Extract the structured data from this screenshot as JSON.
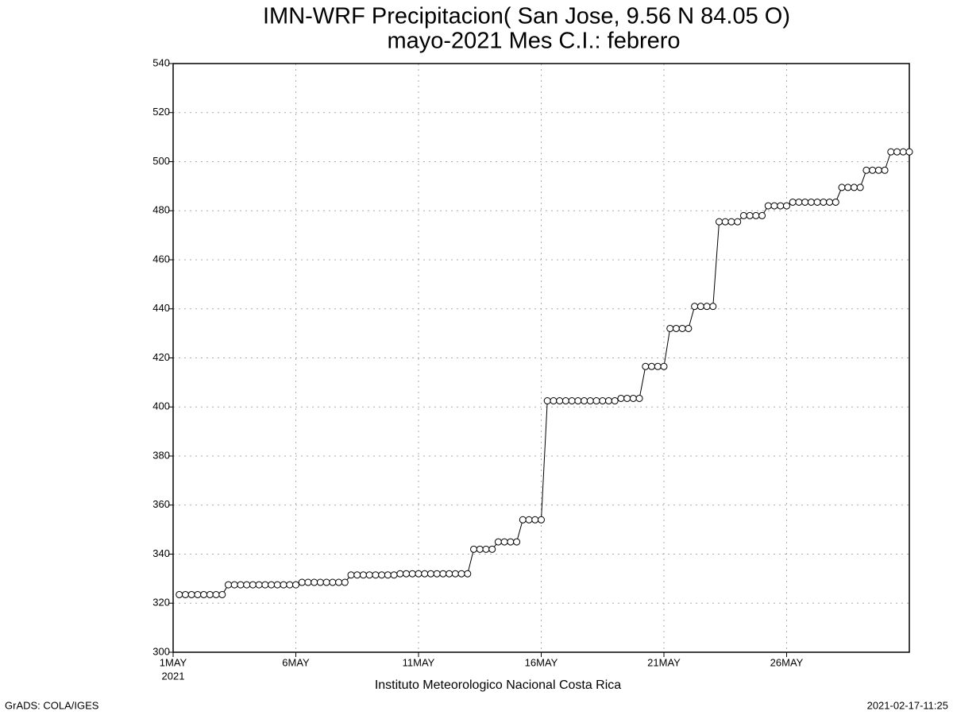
{
  "chart_data": {
    "type": "line",
    "title": "IMN-WRF  Precipitacion( San Jose, 9.56  N 84.05  O)",
    "subtitle": "mayo-2021 Mes C.I.: febrero",
    "x_label": "Instituto Meteorologico Nacional Costa Rica",
    "x_year_label": "2021",
    "footer_left": "GrADS: COLA/IGES",
    "footer_right": "2021-02-17-11:25",
    "xlim": [
      1,
      31
    ],
    "xticks": [
      {
        "value": 1,
        "label": "1MAY"
      },
      {
        "value": 6,
        "label": "6MAY"
      },
      {
        "value": 11,
        "label": "11MAY"
      },
      {
        "value": 16,
        "label": "16MAY"
      },
      {
        "value": 21,
        "label": "21MAY"
      },
      {
        "value": 26,
        "label": "26MAY"
      }
    ],
    "ylim": [
      300,
      540
    ],
    "yticks": [
      300,
      320,
      340,
      360,
      380,
      400,
      420,
      440,
      460,
      480,
      500,
      520,
      540
    ],
    "grid": true,
    "x": [
      1.25,
      1.5,
      1.75,
      2,
      2.25,
      2.5,
      2.75,
      3,
      3.25,
      3.5,
      3.75,
      4,
      4.25,
      4.5,
      4.75,
      5,
      5.25,
      5.5,
      5.75,
      6,
      6.25,
      6.5,
      6.75,
      7,
      7.25,
      7.5,
      7.75,
      8,
      8.25,
      8.5,
      8.75,
      9,
      9.25,
      9.5,
      9.75,
      10,
      10.25,
      10.5,
      10.75,
      11,
      11.25,
      11.5,
      11.75,
      12,
      12.25,
      12.5,
      12.75,
      13,
      13.25,
      13.5,
      13.75,
      14,
      14.25,
      14.5,
      14.75,
      15,
      15.25,
      15.5,
      15.75,
      16,
      16.25,
      16.5,
      16.75,
      17,
      17.25,
      17.5,
      17.75,
      18,
      18.25,
      18.5,
      18.75,
      19,
      19.25,
      19.5,
      19.75,
      20,
      20.25,
      20.5,
      20.75,
      21,
      21.25,
      21.5,
      21.75,
      22,
      22.25,
      22.5,
      22.75,
      23,
      23.25,
      23.5,
      23.75,
      24,
      24.25,
      24.5,
      24.75,
      25,
      25.25,
      25.5,
      25.75,
      26,
      26.25,
      26.5,
      26.75,
      27,
      27.25,
      27.5,
      27.75,
      28,
      28.25,
      28.5,
      28.75,
      29,
      29.25,
      29.5,
      29.75,
      30,
      30.25,
      30.5,
      30.75,
      31
    ],
    "series": [
      {
        "color": "#000000",
        "values": [
          323.5,
          323.5,
          323.5,
          323.5,
          323.5,
          323.5,
          323.5,
          323.5,
          327.5,
          327.5,
          327.5,
          327.5,
          327.5,
          327.5,
          327.5,
          327.5,
          327.5,
          327.5,
          327.5,
          327.5,
          328.5,
          328.5,
          328.5,
          328.5,
          328.5,
          328.5,
          328.5,
          328.5,
          331.5,
          331.5,
          331.5,
          331.5,
          331.5,
          331.5,
          331.5,
          331.5,
          332,
          332,
          332,
          332,
          332,
          332,
          332,
          332,
          332,
          332,
          332,
          332,
          342,
          342,
          342,
          342,
          345,
          345,
          345,
          345,
          354,
          354,
          354,
          354,
          402.5,
          402.5,
          402.5,
          402.5,
          402.5,
          402.5,
          402.5,
          402.5,
          402.5,
          402.5,
          402.5,
          402.5,
          403.5,
          403.5,
          403.5,
          403.5,
          416.5,
          416.5,
          416.5,
          416.5,
          432,
          432,
          432,
          432,
          441,
          441,
          441,
          441,
          475.5,
          475.5,
          475.5,
          475.5,
          478,
          478,
          478,
          478,
          482,
          482,
          482,
          482,
          483.5,
          483.5,
          483.5,
          483.5,
          483.5,
          483.5,
          483.5,
          483.5,
          489.5,
          489.5,
          489.5,
          489.5,
          496.5,
          496.5,
          496.5,
          496.5,
          504,
          504,
          504,
          504
        ]
      }
    ]
  }
}
